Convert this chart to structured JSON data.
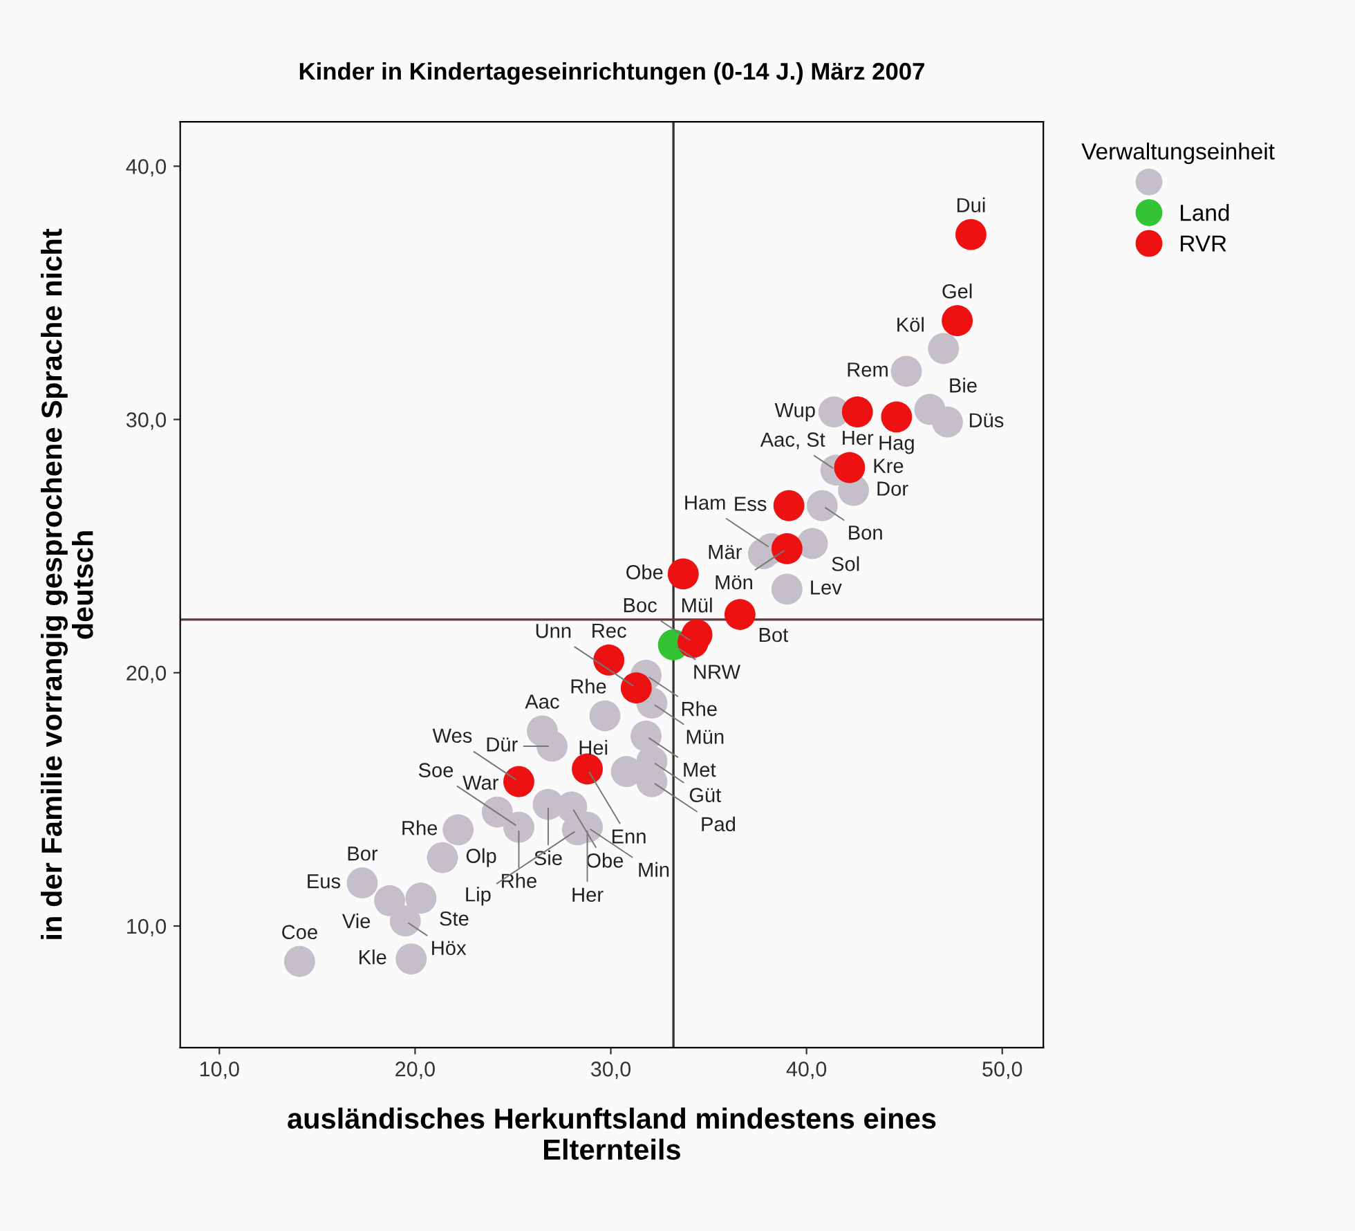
{
  "chart_data": {
    "type": "scatter",
    "title": "Kinder in Kindertageseinrichtungen (0-14 J.) März 2007",
    "xlabel": "ausländisches Herkunftsland mindestens eines\nElternteils",
    "ylabel": "in der Familie vorrangig gesprochene Sprache nicht\ndeutsch",
    "legend_title": "Verwaltungseinheit",
    "legend": "top right",
    "marker": "circle",
    "xlim": [
      8,
      52.1
    ],
    "ylim": [
      5.2,
      41.75
    ],
    "xticks": [
      {
        "value": 10,
        "label": "10,0"
      },
      {
        "value": 20,
        "label": "20,0"
      },
      {
        "value": 30,
        "label": "30,0"
      },
      {
        "value": 40,
        "label": "40,0"
      },
      {
        "value": 50,
        "label": "50,0"
      }
    ],
    "yticks": [
      {
        "value": 10,
        "label": "10,0"
      },
      {
        "value": 20,
        "label": "20,0"
      },
      {
        "value": 30,
        "label": "30,0"
      },
      {
        "value": 40,
        "label": "40,0"
      }
    ],
    "ref_lines": [
      {
        "axis": "x",
        "value": 33.2,
        "color": "#333333"
      },
      {
        "axis": "y",
        "value": 22.1,
        "color": "#5a3a3a"
      }
    ],
    "series": [
      {
        "color": "#c4bfc8",
        "x": [
          45.1,
          47.0,
          41.4,
          46.3,
          47.2,
          41.5,
          42.4,
          40.8,
          40.3,
          37.8,
          38.2,
          39.0,
          31.8,
          32.1,
          29.7,
          31.8,
          30.8,
          32.1,
          32.1,
          28.8,
          26.5,
          27.0,
          26.8,
          24.2,
          25.3,
          28.0,
          28.3,
          22.2,
          21.4,
          17.3,
          18.7,
          20.3,
          19.5,
          19.8,
          14.1
        ],
        "values": [
          31.9,
          32.8,
          30.3,
          30.4,
          29.9,
          28.0,
          27.2,
          26.6,
          25.1,
          24.7,
          24.9,
          23.3,
          19.9,
          18.8,
          18.3,
          17.5,
          16.1,
          15.7,
          16.5,
          13.9,
          17.7,
          17.1,
          14.8,
          14.5,
          13.9,
          14.7,
          13.8,
          13.8,
          12.7,
          11.7,
          11.0,
          11.1,
          10.2,
          8.7,
          8.6
        ]
      },
      {
        "name": "Land",
        "color": "#33c433",
        "x": [
          33.2
        ],
        "values": [
          21.1
        ]
      },
      {
        "name": "RVR",
        "color": "#ee1111",
        "x": [
          48.4,
          47.7,
          42.6,
          44.6,
          42.2,
          39.1,
          39.0,
          33.7,
          36.6,
          34.2,
          34.4,
          29.9,
          31.3,
          28.8,
          25.3
        ],
        "values": [
          37.3,
          33.9,
          30.3,
          30.1,
          28.1,
          26.6,
          24.9,
          23.9,
          22.3,
          21.2,
          21.5,
          20.5,
          19.4,
          16.2,
          15.7
        ]
      }
    ],
    "annotations": [
      {
        "text": "Dui",
        "x": 48.4,
        "y": 37.3
      },
      {
        "text": "Gel",
        "x": 47.7,
        "y": 33.9
      },
      {
        "text": "Köl",
        "x": 47.0,
        "y": 32.8
      },
      {
        "text": "Rem",
        "x": 45.1,
        "y": 31.9
      },
      {
        "text": "Wup",
        "x": 41.4,
        "y": 30.3
      },
      {
        "text": "Her",
        "x": 42.6,
        "y": 30.3
      },
      {
        "text": "Bie",
        "x": 46.3,
        "y": 30.4
      },
      {
        "text": "Aac, St",
        "x": 41.5,
        "y": 28.0
      },
      {
        "text": "Hag",
        "x": 44.6,
        "y": 30.1
      },
      {
        "text": "Düs",
        "x": 47.2,
        "y": 29.9
      },
      {
        "text": "Ess",
        "x": 39.1,
        "y": 26.6
      },
      {
        "text": "Kre",
        "x": 42.2,
        "y": 28.1
      },
      {
        "text": "Dor",
        "x": 42.4,
        "y": 27.2
      },
      {
        "text": "Bon",
        "x": 40.8,
        "y": 26.6
      },
      {
        "text": "Mär",
        "x": 37.8,
        "y": 24.7
      },
      {
        "text": "Sol",
        "x": 40.3,
        "y": 25.1
      },
      {
        "text": "Obe",
        "x": 33.7,
        "y": 23.9
      },
      {
        "text": "Mön",
        "x": 39.0,
        "y": 24.9
      },
      {
        "text": "Ham",
        "x": 38.2,
        "y": 24.9
      },
      {
        "text": "NRW",
        "x": 33.2,
        "y": 21.1
      },
      {
        "text": "Mül",
        "x": 34.4,
        "y": 21.5
      },
      {
        "text": "Lev",
        "x": 39.0,
        "y": 23.3
      },
      {
        "text": "Rec",
        "x": 29.9,
        "y": 20.5
      },
      {
        "text": "Rhe",
        "x": 31.8,
        "y": 19.9
      },
      {
        "text": "Bot",
        "x": 36.6,
        "y": 22.3
      },
      {
        "text": "Boc",
        "x": 34.2,
        "y": 21.2
      },
      {
        "text": "Rhe",
        "x": 29.7,
        "y": 18.3
      },
      {
        "text": "Unn",
        "x": 31.3,
        "y": 19.4
      },
      {
        "text": "Aac",
        "x": 26.5,
        "y": 17.7
      },
      {
        "text": "Dür",
        "x": 27.0,
        "y": 17.1
      },
      {
        "text": "Mün",
        "x": 32.1,
        "y": 18.8
      },
      {
        "text": "Met",
        "x": 31.8,
        "y": 17.5
      },
      {
        "text": "Güt",
        "x": 32.1,
        "y": 16.5
      },
      {
        "text": "War",
        "x": 24.2,
        "y": 14.5
      },
      {
        "text": "Sie",
        "x": 26.8,
        "y": 14.8
      },
      {
        "text": "Enn",
        "x": 28.8,
        "y": 16.2
      },
      {
        "text": "Wes",
        "x": 25.3,
        "y": 15.7
      },
      {
        "text": "Pad",
        "x": 32.1,
        "y": 15.7
      },
      {
        "text": "Hei",
        "x": 30.8,
        "y": 16.1
      },
      {
        "text": "Obe",
        "x": 28.0,
        "y": 14.7
      },
      {
        "text": "Rhe",
        "x": 22.2,
        "y": 13.8
      },
      {
        "text": "Min",
        "x": 28.8,
        "y": 13.9
      },
      {
        "text": "Her",
        "x": 28.8,
        "y": 13.9
      },
      {
        "text": "Olp",
        "x": 21.4,
        "y": 12.7
      },
      {
        "text": "Rhe",
        "x": 25.3,
        "y": 13.9
      },
      {
        "text": "Lip",
        "x": 28.3,
        "y": 13.8
      },
      {
        "text": "Bor",
        "x": 17.3,
        "y": 11.7
      },
      {
        "text": "Vie",
        "x": 18.7,
        "y": 11.0
      },
      {
        "text": "Ste",
        "x": 20.3,
        "y": 11.1
      },
      {
        "text": "Soe",
        "x": 25.3,
        "y": 13.9
      },
      {
        "text": "Eus",
        "x": 17.3,
        "y": 11.7
      },
      {
        "text": "Höx",
        "x": 19.5,
        "y": 10.2
      },
      {
        "text": "Coe",
        "x": 14.1,
        "y": 8.6
      },
      {
        "text": "Kle",
        "x": 19.8,
        "y": 8.7
      }
    ]
  }
}
